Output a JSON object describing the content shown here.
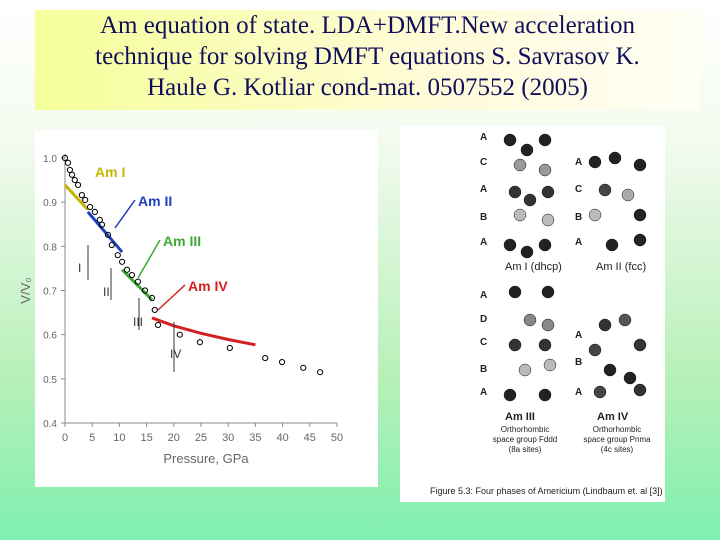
{
  "slide": {
    "title_lines": [
      "Am equation of state. LDA+DMFT.New acceleration",
      "technique for solving DMFT equations S.  Savrasov K.",
      "Haule G. Kotliar cond-mat. 0507552 (2005)"
    ]
  },
  "chart_data": {
    "type": "scatter-line",
    "x_label": "Pressure, GPa",
    "y_label": "V/V₀",
    "xlim": [
      0,
      50
    ],
    "xticks": [
      0,
      5,
      10,
      15,
      20,
      25,
      30,
      35,
      40,
      45,
      50
    ],
    "ylim": [
      0.4,
      1.0
    ],
    "yticks": [
      0.4,
      0.5,
      0.6,
      0.7,
      0.8,
      0.9,
      {
        "value": 1.0,
        "label": "1.0"
      }
    ],
    "points": {
      "x": [
        0,
        0.55,
        0.9,
        1.3,
        1.8,
        2.4,
        3.1,
        3.7,
        4.6,
        5.5,
        6.4,
        6.8,
        7.9,
        8.6,
        9.7,
        10.5,
        11.4,
        12.3,
        13.4,
        14.7,
        16,
        16.5,
        17.1,
        21.1,
        24.8,
        30.3,
        36.8,
        39.9,
        43.8,
        46.9
      ],
      "values": [
        1.0,
        0.989,
        0.973,
        0.962,
        0.95,
        0.939,
        0.916,
        0.905,
        0.889,
        0.878,
        0.86,
        0.849,
        0.826,
        0.803,
        0.78,
        0.765,
        0.747,
        0.735,
        0.72,
        0.7,
        0.683,
        0.656,
        0.622,
        0.6,
        0.583,
        0.57,
        0.547,
        0.538,
        0.525,
        0.515
      ]
    },
    "series": [
      {
        "name": "Am I",
        "color": "#c8b400",
        "x": [
          0,
          4.2
        ],
        "values": [
          0.939,
          0.883
        ]
      },
      {
        "name": "Am II",
        "color": "#1f3fc0",
        "x": [
          4.2,
          10.5
        ],
        "values": [
          0.878,
          0.787
        ]
      },
      {
        "name": "Am III",
        "color": "#3aa832",
        "x": [
          10.5,
          16
        ],
        "values": [
          0.747,
          0.679
        ]
      },
      {
        "name": "Am IV",
        "color": "#d42020",
        "x": [
          16,
          20,
          25,
          30,
          35
        ],
        "values": [
          0.638,
          0.62,
          0.603,
          0.589,
          0.577
        ]
      }
    ],
    "phase_labels": [
      "I",
      "II",
      "III",
      "IV"
    ]
  },
  "figure": {
    "stack_labels_left": [
      "A",
      "C",
      "A",
      "B",
      "A"
    ],
    "stack_labels_mid": [
      "A",
      "C",
      "B",
      "A"
    ],
    "captions": [
      "Am I (dhcp)",
      "Am II (fcc)",
      "Am III",
      "Am IV"
    ],
    "lower_labels_left": [
      "A",
      "D",
      "C",
      "B",
      "A"
    ],
    "lower_labels_right": [
      "A",
      "B",
      "A"
    ],
    "notes": [
      "Orthorhombic",
      "space group Fddd",
      "(8a sites)",
      "Orthorhombic",
      "space group Pnma",
      "(4c sites)"
    ],
    "figure_caption": "Figure 5.3: Four phases of Americium (Lindbaum et. al [3])"
  }
}
